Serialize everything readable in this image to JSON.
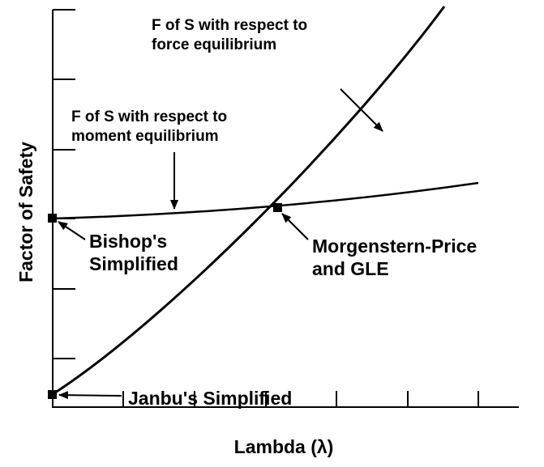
{
  "axes": {
    "y_label": "Factor of Safety",
    "x_label": "Lambda (λ)"
  },
  "annotations": {
    "force": [
      "F of S with respect to",
      "force equilibrium"
    ],
    "moment": [
      "F of S with respect to",
      "moment equilibrium"
    ],
    "bishop": [
      "Bishop's",
      "Simplified"
    ],
    "morgenstern": [
      "Morgenstern-Price",
      "and GLE"
    ],
    "janbu": "Janbu's Simplified"
  }
}
